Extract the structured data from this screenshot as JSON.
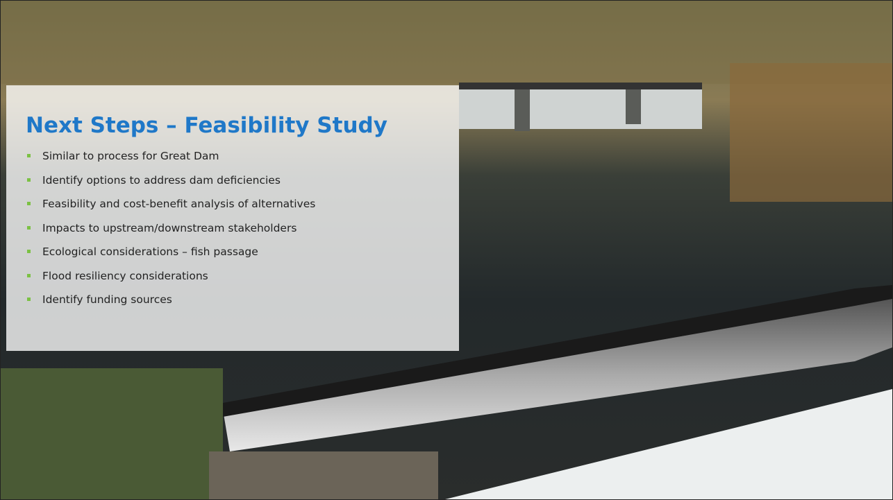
{
  "title": "Next Steps – Feasibility Study",
  "bullets": [
    "Similar to process for Great Dam",
    "Identify options to address dam deficiencies",
    "Feasibility and cost-benefit analysis of alternatives",
    "Impacts to upstream/downstream stakeholders",
    "Ecological considerations – fish passage",
    "Flood resiliency considerations",
    "Identify funding sources"
  ]
}
